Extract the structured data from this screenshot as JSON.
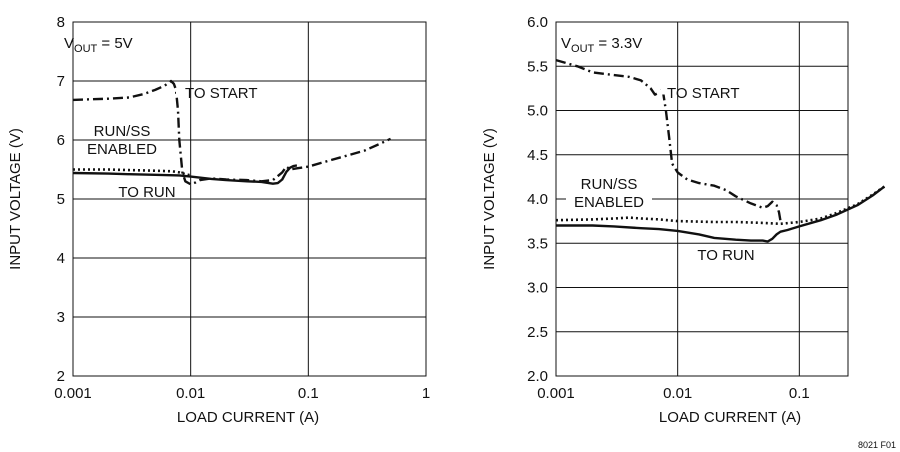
{
  "figure_code": "8021 F01",
  "chart_data": [
    {
      "type": "line",
      "condition_main": "V",
      "condition_sub": "OUT",
      "condition_rest": " = 5V",
      "xlabel": "LOAD CURRENT (A)",
      "ylabel": "INPUT VOLTAGE (V)",
      "x_scale": "log",
      "xlim": [
        0.001,
        1
      ],
      "ylim": [
        2,
        8
      ],
      "x_tick_labels": [
        "0.001",
        "0.01",
        "0.1",
        "1"
      ],
      "y_tick_labels": [
        "2",
        "3",
        "4",
        "5",
        "6",
        "7",
        "8"
      ],
      "grid": true,
      "annotations": [
        {
          "text": "TO START",
          "lines": [
            "TO START"
          ]
        },
        {
          "text": "RUN/SS ENABLED",
          "lines": [
            "RUN/SS",
            "ENABLED"
          ]
        },
        {
          "text": "TO RUN",
          "lines": [
            "TO RUN"
          ]
        }
      ],
      "series": [
        {
          "style": "dashdot",
          "x": [
            0.001,
            0.002,
            0.003,
            0.004,
            0.005,
            0.006,
            0.0068,
            0.0072,
            0.0075,
            0.0078,
            0.008,
            0.0085,
            0.009,
            0.01,
            0.011,
            0.012,
            0.015,
            0.02,
            0.03,
            0.04,
            0.05,
            0.06,
            0.065,
            0.07,
            0.08,
            0.1,
            0.15,
            0.2,
            0.3,
            0.4,
            0.5
          ],
          "y": [
            6.68,
            6.7,
            6.72,
            6.78,
            6.85,
            6.92,
            7.0,
            6.95,
            6.85,
            6.5,
            6.0,
            5.45,
            5.3,
            5.25,
            5.28,
            5.32,
            5.35,
            5.33,
            5.32,
            5.3,
            5.32,
            5.45,
            5.55,
            5.5,
            5.52,
            5.55,
            5.65,
            5.72,
            5.82,
            5.93,
            6.02
          ]
        },
        {
          "style": "dotted",
          "x": [
            0.001,
            0.002,
            0.003,
            0.005,
            0.007,
            0.008,
            0.009,
            0.01
          ],
          "y": [
            5.5,
            5.5,
            5.49,
            5.48,
            5.47,
            5.45,
            5.42,
            5.4
          ]
        },
        {
          "style": "solid",
          "x": [
            0.001,
            0.002,
            0.003,
            0.005,
            0.008,
            0.01,
            0.015,
            0.02,
            0.03,
            0.04,
            0.05,
            0.055,
            0.06,
            0.065,
            0.07,
            0.075,
            0.08
          ],
          "y": [
            5.44,
            5.43,
            5.42,
            5.41,
            5.4,
            5.38,
            5.34,
            5.32,
            5.3,
            5.29,
            5.26,
            5.27,
            5.33,
            5.46,
            5.53,
            5.56,
            5.57
          ]
        }
      ]
    },
    {
      "type": "line",
      "condition_main": "V",
      "condition_sub": "OUT",
      "condition_rest": " = 3.3V",
      "xlabel": "LOAD CURRENT (A)",
      "ylabel": "INPUT VOLTAGE (V)",
      "x_scale": "log",
      "xlim": [
        0.001,
        1
      ],
      "ylim": [
        2.0,
        6.0
      ],
      "x_tick_labels": [
        "0.001",
        "0.01",
        "0.1"
      ],
      "y_tick_labels": [
        "2.0",
        "2.5",
        "3.0",
        "3.5",
        "4.0",
        "4.5",
        "5.0",
        "5.5",
        "6.0"
      ],
      "grid": true,
      "annotations": [
        {
          "text": "TO START",
          "lines": [
            "TO START"
          ]
        },
        {
          "text": "RUN/SS ENABLED",
          "lines": [
            "RUN/SS",
            "ENABLED"
          ]
        },
        {
          "text": "TO RUN",
          "lines": [
            "TO RUN"
          ]
        }
      ],
      "series": [
        {
          "style": "dashdot",
          "x": [
            0.001,
            0.0015,
            0.002,
            0.003,
            0.004,
            0.005,
            0.006,
            0.0065,
            0.007,
            0.0075,
            0.008,
            0.0085,
            0.009,
            0.01,
            0.012,
            0.015,
            0.02,
            0.025,
            0.03,
            0.04,
            0.05,
            0.055,
            0.06,
            0.065,
            0.068,
            0.07
          ],
          "y": [
            5.57,
            5.5,
            5.43,
            5.4,
            5.38,
            5.34,
            5.25,
            5.18,
            5.2,
            5.25,
            5.0,
            4.7,
            4.4,
            4.3,
            4.22,
            4.18,
            4.15,
            4.1,
            4.03,
            3.95,
            3.9,
            3.92,
            3.97,
            3.93,
            3.85,
            3.75
          ]
        },
        {
          "style": "dotted",
          "x": [
            0.001,
            0.002,
            0.003,
            0.004,
            0.005,
            0.007,
            0.01,
            0.02,
            0.03,
            0.05,
            0.07,
            0.1,
            0.15,
            0.2,
            0.3,
            0.4,
            0.5
          ],
          "y": [
            3.76,
            3.77,
            3.78,
            3.79,
            3.78,
            3.77,
            3.75,
            3.74,
            3.74,
            3.73,
            3.72,
            3.74,
            3.78,
            3.84,
            3.94,
            4.05,
            4.14
          ]
        },
        {
          "style": "solid",
          "x": [
            0.001,
            0.002,
            0.003,
            0.005,
            0.007,
            0.01,
            0.015,
            0.02,
            0.03,
            0.04,
            0.05,
            0.055,
            0.06,
            0.065,
            0.07,
            0.08,
            0.1,
            0.15,
            0.2,
            0.3,
            0.4,
            0.5
          ],
          "y": [
            3.7,
            3.7,
            3.69,
            3.67,
            3.66,
            3.64,
            3.6,
            3.56,
            3.54,
            3.53,
            3.53,
            3.52,
            3.55,
            3.6,
            3.63,
            3.65,
            3.69,
            3.76,
            3.82,
            3.93,
            4.04,
            4.14
          ]
        }
      ]
    }
  ]
}
